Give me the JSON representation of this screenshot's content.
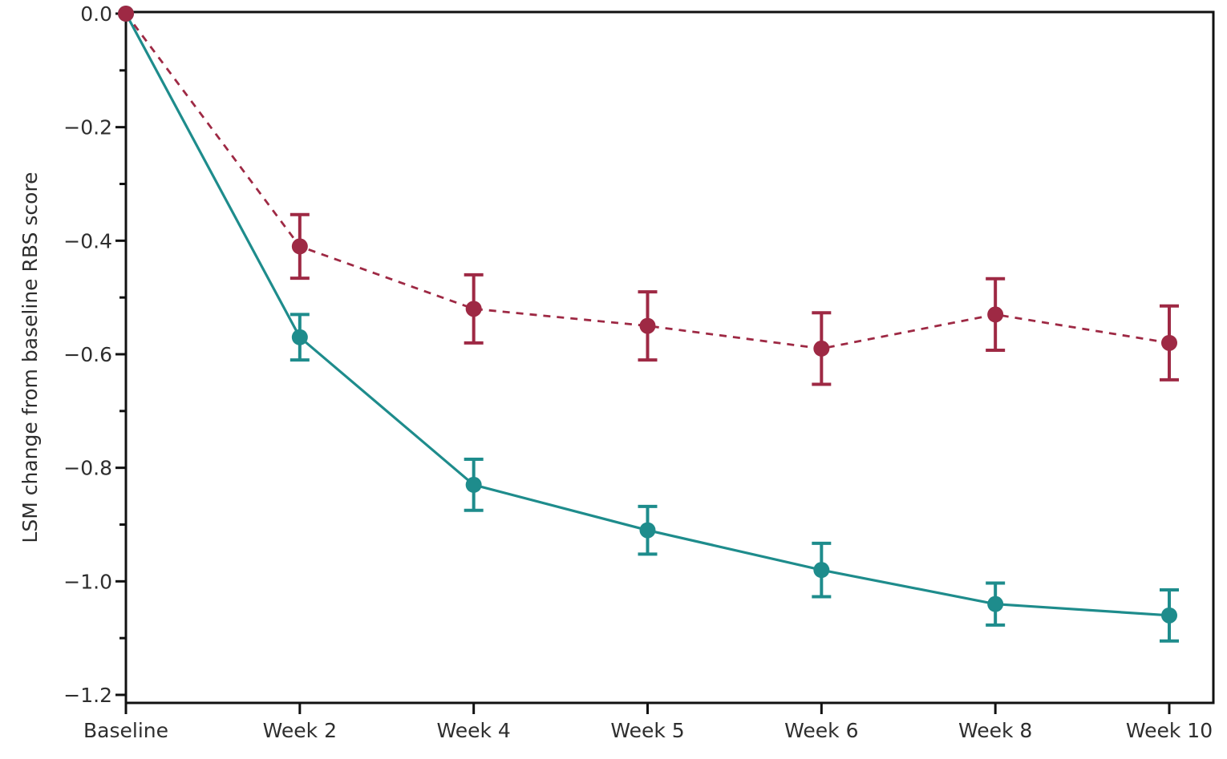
{
  "figure": {
    "background": "#ffffff",
    "title": "",
    "legend": "none"
  },
  "chart_data": {
    "type": "line",
    "title": "",
    "xlabel": "",
    "ylabel": "LSM change from baseline RBS score",
    "categories": [
      "Baseline",
      "Week 2",
      "Week 4",
      "Week 5",
      "Week 6",
      "Week 8",
      "Week 10"
    ],
    "ylim": [
      -1.22,
      0.0
    ],
    "yticks_major": [
      0.0,
      -0.2,
      -0.4,
      -0.6,
      -0.8,
      -1.0,
      -1.2
    ],
    "ytick_labels": [
      "0.0",
      "−0.2",
      "−0.4",
      "−0.6",
      "−0.8",
      "−1.0",
      "−1.2"
    ],
    "yticks_minor": [
      -0.1,
      -0.3,
      -0.5,
      -0.7,
      -0.9,
      -1.1
    ],
    "grid": false,
    "legend_position": "none",
    "axis_color": "#111111",
    "tick_label_color": "#2e2e2e",
    "series": [
      {
        "name": "solid-teal-series",
        "color": "#1e8c8c",
        "line_style": "solid",
        "marker": "circle",
        "values": [
          0.0,
          -0.57,
          -0.83,
          -0.91,
          -0.98,
          -1.04,
          -1.06
        ],
        "error_bars": [
          0.0,
          0.04,
          0.045,
          0.042,
          0.047,
          0.037,
          0.045
        ]
      },
      {
        "name": "dashed-red-series",
        "color": "#9e2944",
        "line_style": "dashed",
        "marker": "circle",
        "values": [
          0.0,
          -0.41,
          -0.52,
          -0.55,
          -0.59,
          -0.53,
          -0.58
        ],
        "error_bars": [
          0.0,
          0.056,
          0.06,
          0.06,
          0.063,
          0.063,
          0.065
        ]
      }
    ]
  }
}
